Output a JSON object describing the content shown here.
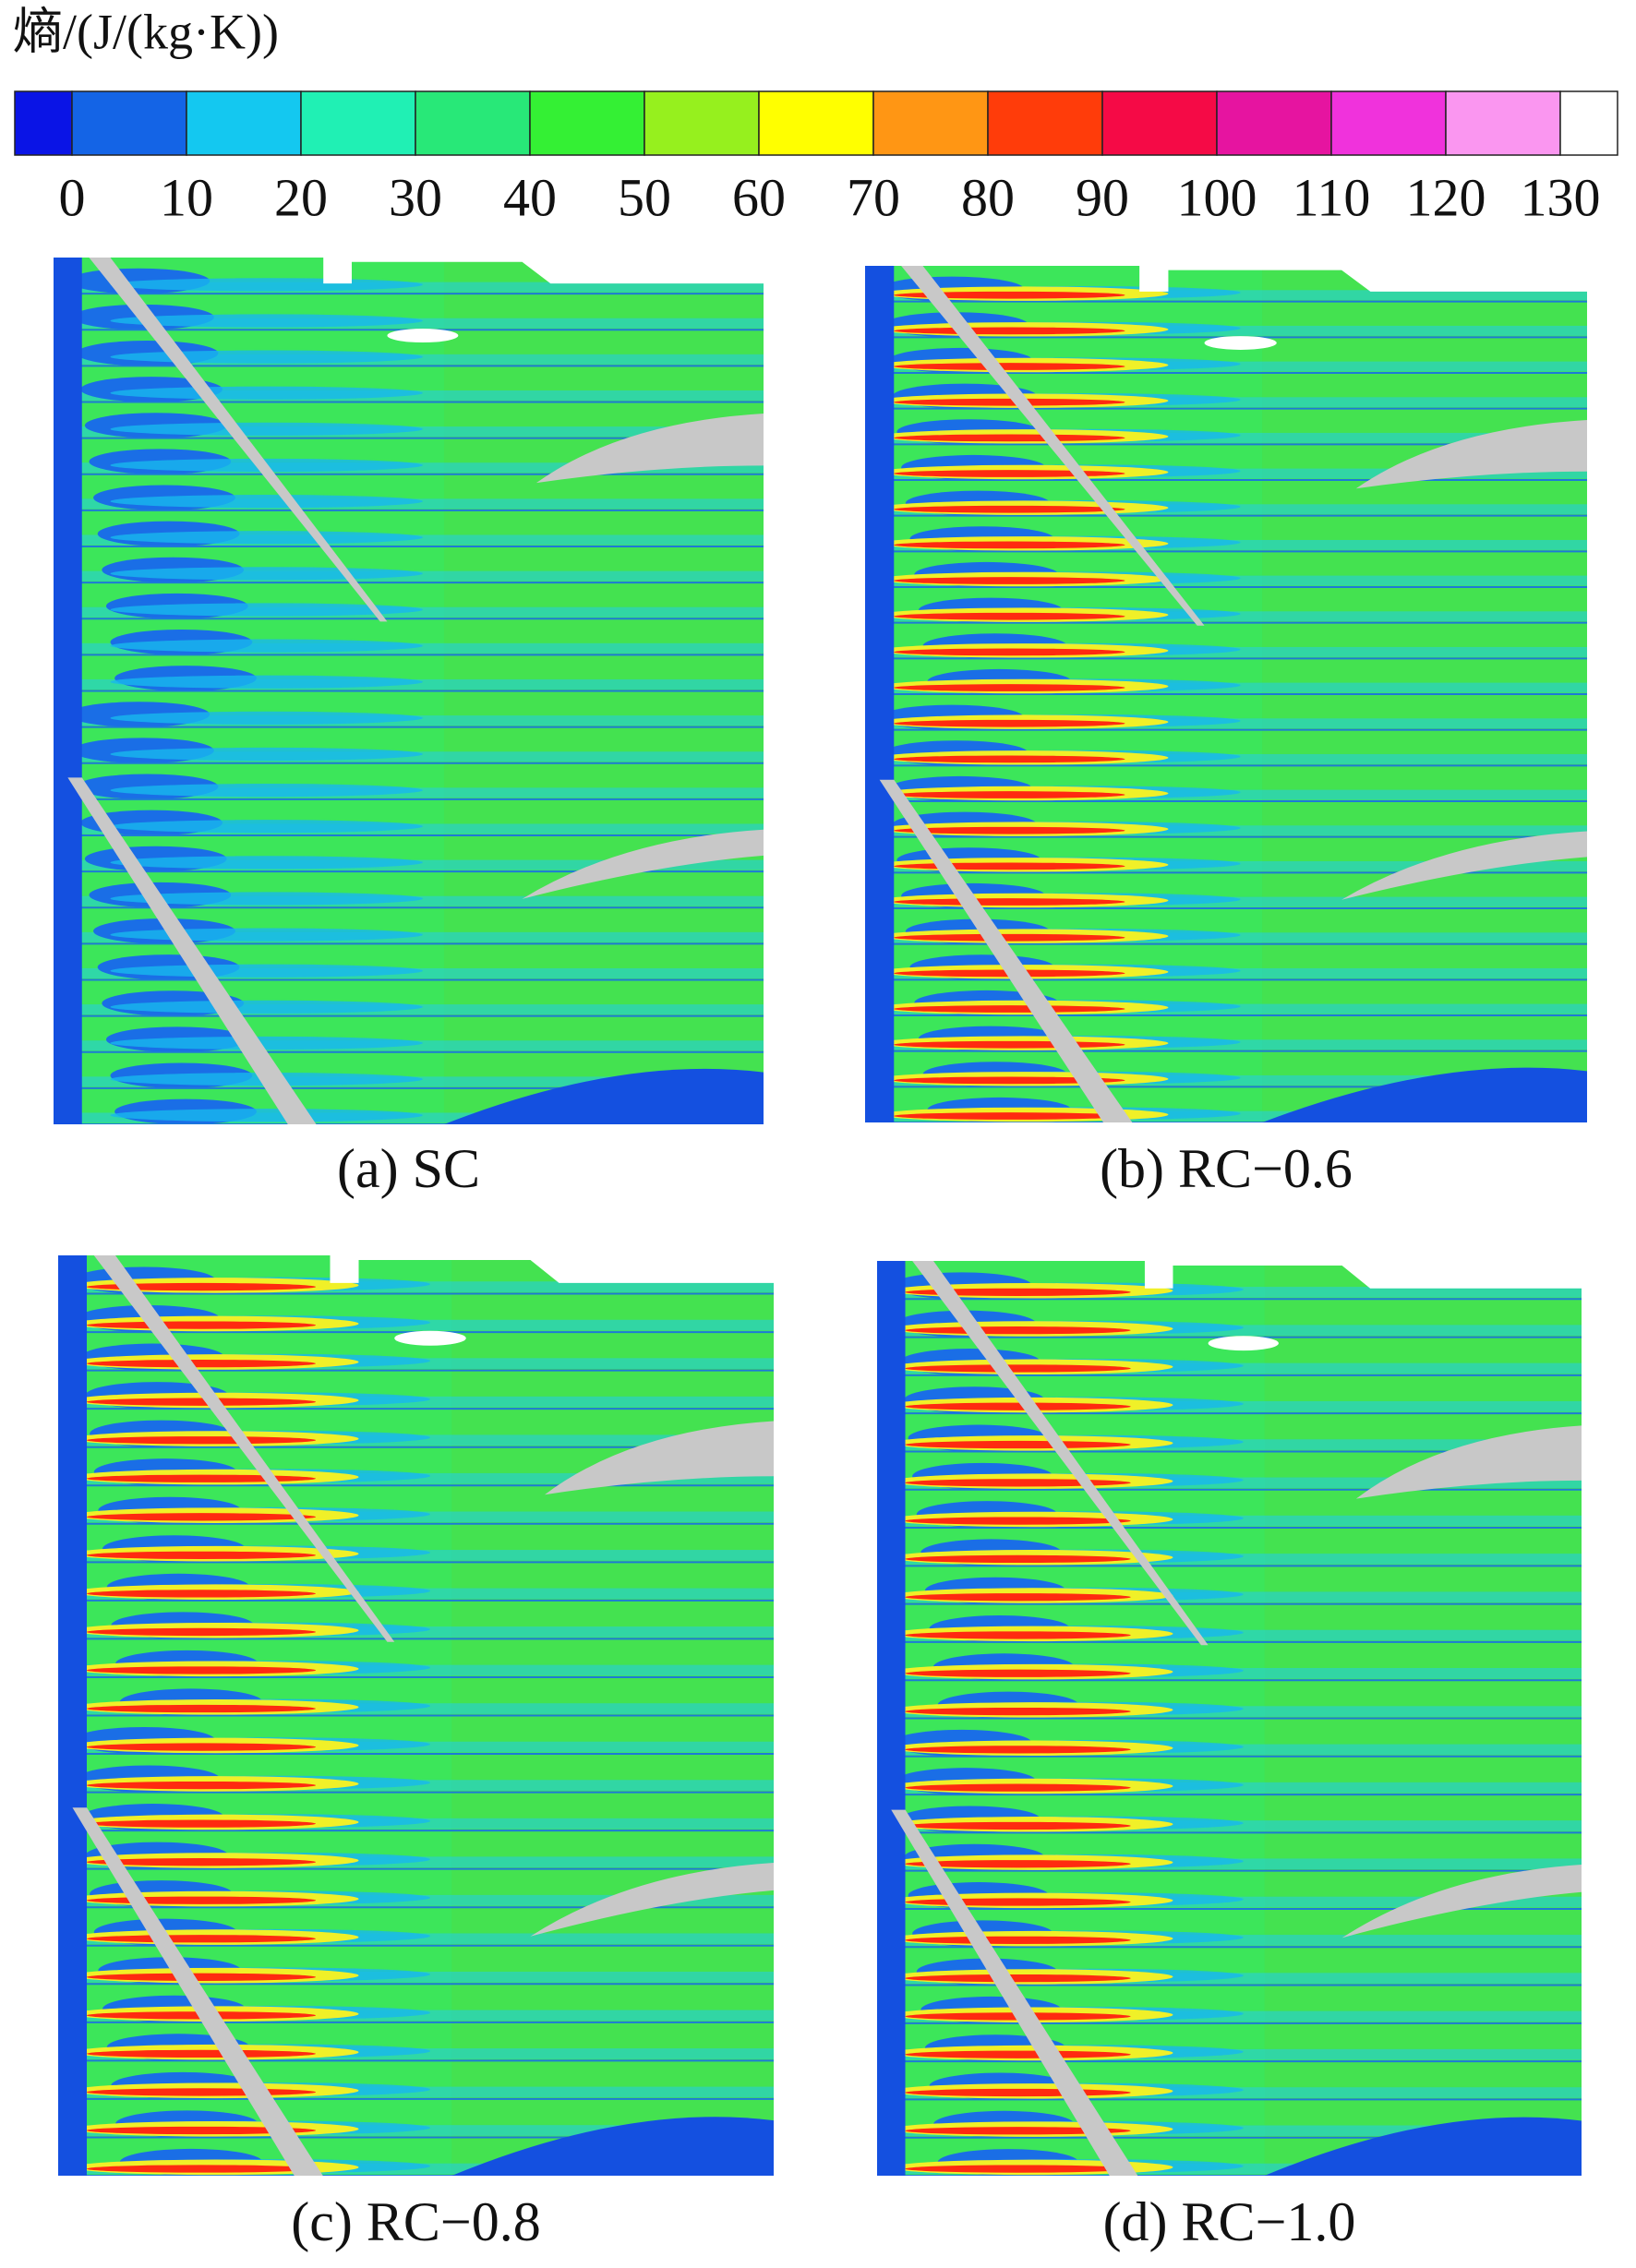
{
  "colorbar": {
    "title": "熵/(J/(kg·K))",
    "ticks": [
      0,
      10,
      20,
      30,
      40,
      50,
      60,
      70,
      80,
      90,
      100,
      110,
      120,
      130
    ],
    "colors": [
      "#0a14e6",
      "#1464e6",
      "#14c8f0",
      "#20f0b4",
      "#28e878",
      "#34f034",
      "#96f01e",
      "#ffff00",
      "#ff9614",
      "#ff3c0a",
      "#f50a46",
      "#e614a0",
      "#f032dc",
      "#fa96f0",
      "#ffffff"
    ]
  },
  "panels": [
    {
      "caption": "(a) SC",
      "variant": "sc"
    },
    {
      "caption": "(b) RC−0.6",
      "variant": "rc"
    },
    {
      "caption": "(c) RC−0.8",
      "variant": "rc"
    },
    {
      "caption": "(d) RC−1.0",
      "variant": "rc"
    }
  ]
}
